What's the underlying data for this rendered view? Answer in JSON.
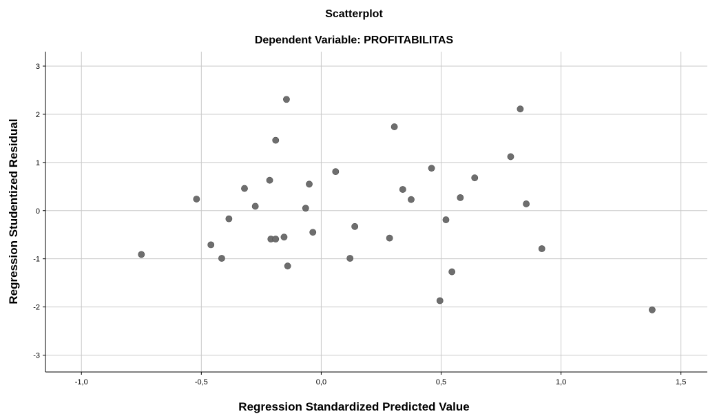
{
  "chart_data": {
    "type": "scatter",
    "title": "Scatterplot",
    "subtitle": "Dependent Variable: PROFITABILITAS",
    "xlabel": "Regression Standardized Predicted Value",
    "ylabel": "Regression Studentized Residual",
    "xlim": [
      -1.15,
      1.61
    ],
    "ylim": [
      -3.35,
      3.3
    ],
    "xticks": [
      -1.0,
      -0.5,
      0.0,
      0.5,
      1.0,
      1.5
    ],
    "xtick_labels": [
      "-1,0",
      "-0,5",
      "0,0",
      "0,5",
      "1,0",
      "1,5"
    ],
    "yticks": [
      -3,
      -2,
      -1,
      0,
      1,
      2,
      3
    ],
    "ytick_labels": [
      "-3",
      "-2",
      "-1",
      "0",
      "1",
      "2",
      "3"
    ],
    "grid": true,
    "point_color": "#6e6e6e",
    "points": [
      {
        "x": -0.75,
        "y": -0.91
      },
      {
        "x": -0.52,
        "y": 0.24
      },
      {
        "x": -0.46,
        "y": -0.71
      },
      {
        "x": -0.415,
        "y": -0.99
      },
      {
        "x": -0.385,
        "y": -0.17
      },
      {
        "x": -0.32,
        "y": 0.46
      },
      {
        "x": -0.275,
        "y": 0.09
      },
      {
        "x": -0.215,
        "y": 0.63
      },
      {
        "x": -0.21,
        "y": -0.59
      },
      {
        "x": -0.19,
        "y": 1.46
      },
      {
        "x": -0.19,
        "y": -0.59
      },
      {
        "x": -0.155,
        "y": -0.55
      },
      {
        "x": -0.145,
        "y": 2.31
      },
      {
        "x": -0.14,
        "y": -1.15
      },
      {
        "x": -0.065,
        "y": 0.05
      },
      {
        "x": -0.05,
        "y": 0.55
      },
      {
        "x": -0.035,
        "y": -0.45
      },
      {
        "x": 0.06,
        "y": 0.81
      },
      {
        "x": 0.12,
        "y": -0.99
      },
      {
        "x": 0.14,
        "y": -0.33
      },
      {
        "x": 0.285,
        "y": -0.57
      },
      {
        "x": 0.305,
        "y": 1.74
      },
      {
        "x": 0.34,
        "y": 0.44
      },
      {
        "x": 0.375,
        "y": 0.23
      },
      {
        "x": 0.46,
        "y": 0.88
      },
      {
        "x": 0.495,
        "y": -1.87
      },
      {
        "x": 0.52,
        "y": -0.19
      },
      {
        "x": 0.545,
        "y": -1.27
      },
      {
        "x": 0.58,
        "y": 0.27
      },
      {
        "x": 0.64,
        "y": 0.68
      },
      {
        "x": 0.79,
        "y": 1.12
      },
      {
        "x": 0.83,
        "y": 2.11
      },
      {
        "x": 0.855,
        "y": 0.14
      },
      {
        "x": 0.92,
        "y": -0.79
      },
      {
        "x": 1.38,
        "y": -2.06
      }
    ]
  }
}
